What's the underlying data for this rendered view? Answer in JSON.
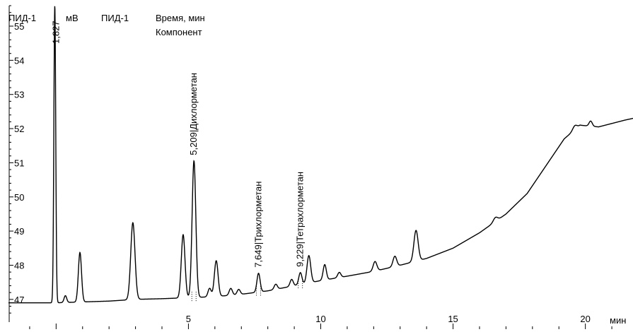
{
  "header": {
    "channel_label": "ПИД-1",
    "y_unit": "мВ",
    "signal_name": "ПИД-1",
    "x_title": "Время, мин",
    "peak_label_title": "Компонент"
  },
  "chart_data": {
    "type": "line",
    "title": "",
    "xlabel": "мин",
    "ylabel": "мВ",
    "xlim": [
      -1.8,
      21.8
    ],
    "ylim": [
      46.5,
      55.6
    ],
    "x_ticks": [
      5,
      10,
      15,
      20
    ],
    "y_ticks": [
      47,
      48,
      49,
      50,
      51,
      52,
      53,
      54,
      55
    ],
    "x_tick_labels": [
      "5",
      "10",
      "15",
      "20"
    ],
    "y_tick_labels": [
      "47",
      "48",
      "49",
      "50",
      "51",
      "52",
      "53",
      "54",
      "55"
    ],
    "baseline_points": [
      [
        -1.8,
        46.9
      ],
      [
        0.0,
        46.9
      ],
      [
        2.0,
        46.95
      ],
      [
        3.0,
        47.0
      ],
      [
        4.0,
        47.02
      ],
      [
        5.0,
        47.05
      ],
      [
        6.0,
        47.08
      ],
      [
        7.0,
        47.15
      ],
      [
        8.0,
        47.25
      ],
      [
        9.0,
        47.4
      ],
      [
        10.0,
        47.55
      ],
      [
        11.0,
        47.68
      ],
      [
        12.0,
        47.82
      ],
      [
        13.0,
        48.0
      ],
      [
        14.0,
        48.2
      ],
      [
        15.0,
        48.5
      ],
      [
        16.0,
        48.95
      ],
      [
        17.0,
        49.5
      ],
      [
        17.8,
        50.1
      ],
      [
        18.5,
        50.9
      ],
      [
        19.2,
        51.7
      ],
      [
        19.8,
        52.1
      ],
      [
        20.5,
        52.05
      ],
      [
        21.0,
        52.15
      ],
      [
        21.5,
        52.25
      ],
      [
        21.8,
        52.3
      ]
    ],
    "peaks": [
      {
        "rt": -0.05,
        "height": 8.7,
        "width": 0.035
      },
      {
        "rt": 0.35,
        "height": 0.2,
        "width": 0.05
      },
      {
        "rt": 0.9,
        "height": 1.45,
        "width": 0.06
      },
      {
        "rt": 2.9,
        "height": 2.25,
        "width": 0.08
      },
      {
        "rt": 4.8,
        "height": 1.85,
        "width": 0.07
      },
      {
        "rt": 5.209,
        "height": 4.0,
        "width": 0.07
      },
      {
        "rt": 5.8,
        "height": 0.25,
        "width": 0.06
      },
      {
        "rt": 6.05,
        "height": 1.05,
        "width": 0.07
      },
      {
        "rt": 6.6,
        "height": 0.2,
        "width": 0.06
      },
      {
        "rt": 6.9,
        "height": 0.15,
        "width": 0.06
      },
      {
        "rt": 7.649,
        "height": 0.55,
        "width": 0.06
      },
      {
        "rt": 8.3,
        "height": 0.15,
        "width": 0.06
      },
      {
        "rt": 8.9,
        "height": 0.2,
        "width": 0.06
      },
      {
        "rt": 9.229,
        "height": 0.35,
        "width": 0.06
      },
      {
        "rt": 9.55,
        "height": 0.8,
        "width": 0.07
      },
      {
        "rt": 10.15,
        "height": 0.45,
        "width": 0.06
      },
      {
        "rt": 10.7,
        "height": 0.15,
        "width": 0.06
      },
      {
        "rt": 12.05,
        "height": 0.28,
        "width": 0.07
      },
      {
        "rt": 12.8,
        "height": 0.3,
        "width": 0.07
      },
      {
        "rt": 13.6,
        "height": 0.9,
        "width": 0.08
      },
      {
        "rt": 16.6,
        "height": 0.12,
        "width": 0.08
      },
      {
        "rt": 19.6,
        "height": 0.12,
        "width": 0.08
      },
      {
        "rt": 20.2,
        "height": 0.15,
        "width": 0.06
      }
    ],
    "annotations": [
      {
        "rt": 0,
        "text": "1,827"
      },
      {
        "rt": 5.209,
        "text": "5,209|Дихлорметан"
      },
      {
        "rt": 7.649,
        "text": "7,649|Трихлорметан"
      },
      {
        "rt": 9.229,
        "text": "9,229|Тетрахлорметан"
      }
    ]
  }
}
